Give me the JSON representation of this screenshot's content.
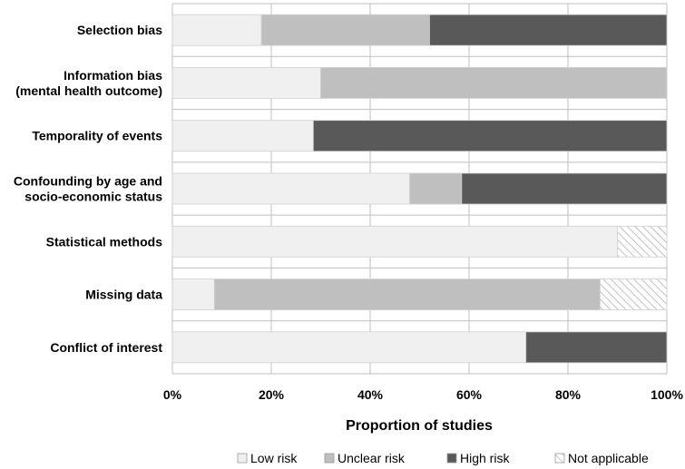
{
  "chart_data": {
    "type": "bar",
    "orientation": "horizontal",
    "stacked": true,
    "title": "",
    "xlabel": "Proportion of studies",
    "ylabel": "",
    "xlim": [
      0,
      100
    ],
    "x_ticks": [
      "0%",
      "20%",
      "40%",
      "60%",
      "80%",
      "100%"
    ],
    "grid": true,
    "legend_position": "bottom",
    "categories": [
      [
        "Selection bias"
      ],
      [
        "Information bias",
        "(mental health outcome)"
      ],
      [
        "Temporality of events"
      ],
      [
        "Confounding by age and",
        "socio-economic status"
      ],
      [
        "Statistical methods"
      ],
      [
        "Missing data"
      ],
      [
        "Conflict of interest"
      ]
    ],
    "series": [
      {
        "name": "Low risk",
        "color": "#f0f0f0",
        "values": [
          18,
          30,
          28.5,
          48,
          90,
          8.5,
          71.5
        ]
      },
      {
        "name": "Unclear risk",
        "color": "#bfbfbf",
        "values": [
          34,
          70,
          0,
          10.5,
          0,
          78,
          0
        ]
      },
      {
        "name": "High risk",
        "color": "#595959",
        "values": [
          48,
          0,
          71.5,
          41.5,
          0,
          0,
          28.5
        ]
      },
      {
        "name": "Not applicable",
        "color": "hatched",
        "values": [
          0,
          0,
          0,
          0,
          10,
          13.5,
          0
        ]
      }
    ]
  }
}
